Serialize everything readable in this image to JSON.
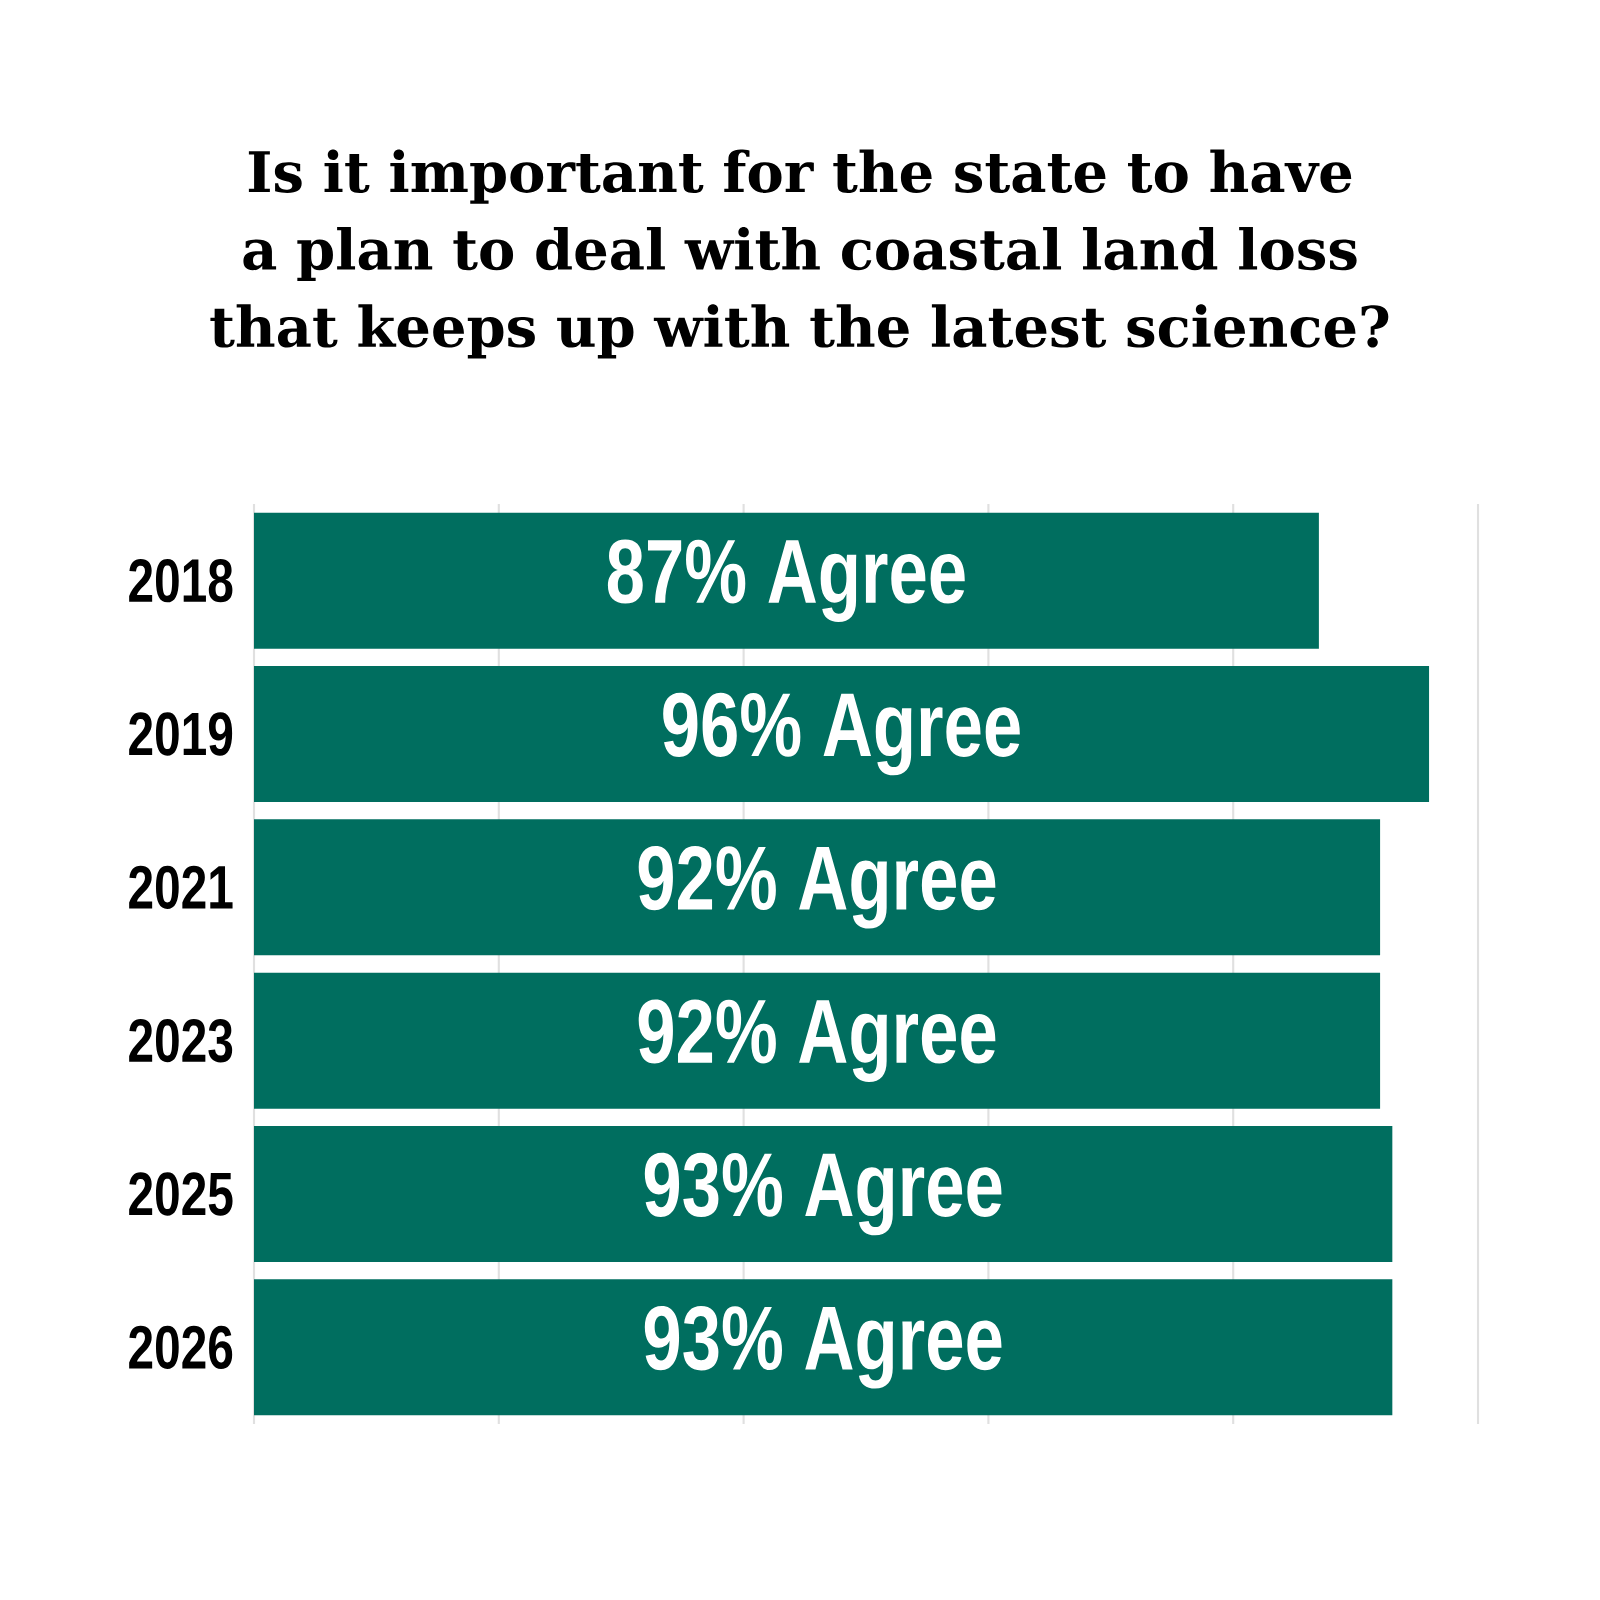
{
  "chart_data": {
    "type": "bar",
    "orientation": "horizontal",
    "title": "Is it important for the state to have a plan to deal with coastal land loss that keeps up with the latest science?",
    "categories": [
      "2018",
      "2019",
      "2021",
      "2023",
      "2025",
      "2026"
    ],
    "values": [
      87,
      96,
      92,
      92,
      93,
      93
    ],
    "value_labels": [
      "87% Agree",
      "96% Agree",
      "92% Agree",
      "92% Agree",
      "93% Agree",
      "93% Agree"
    ],
    "color": "#006e5f",
    "xlim": [
      0,
      100
    ],
    "xticks": [
      {
        "value": 0,
        "label": null
      },
      {
        "value": 20,
        "label": null
      },
      {
        "value": 40,
        "label": null
      },
      {
        "value": 60,
        "label": null
      },
      {
        "value": 80,
        "label": null
      },
      {
        "value": 100,
        "label": null
      }
    ],
    "grid": "x",
    "tick_labels": "y"
  }
}
